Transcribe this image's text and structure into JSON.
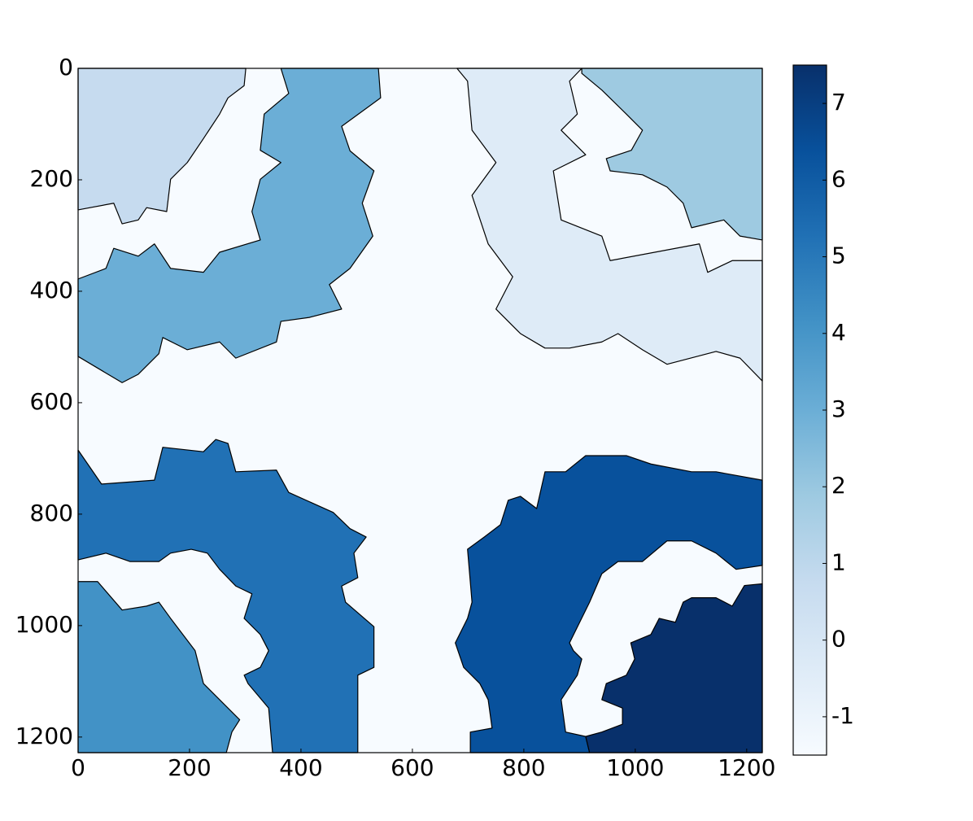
{
  "chart_data": {
    "type": "label_image",
    "xlim": [
      0,
      1228
    ],
    "ylim": [
      1228,
      0
    ],
    "xticks": [
      0,
      200,
      400,
      600,
      800,
      1000,
      1200
    ],
    "yticks": [
      0,
      200,
      400,
      600,
      800,
      1000,
      1200
    ],
    "regions": [
      {
        "value": -1,
        "color": "#f7fbff",
        "outline": [
          [
            0,
            0
          ],
          [
            1228,
            0
          ],
          [
            1228,
            1228
          ],
          [
            0,
            1228
          ]
        ]
      },
      {
        "value": 0,
        "color": "#deebf7",
        "outline": [
          [
            680,
            0
          ],
          [
            904,
            0
          ],
          [
            882,
            23
          ],
          [
            896,
            82
          ],
          [
            867,
            111
          ],
          [
            911,
            155
          ],
          [
            853,
            184
          ],
          [
            867,
            272
          ],
          [
            940,
            301
          ],
          [
            955,
            345
          ],
          [
            1115,
            315
          ],
          [
            1130,
            366
          ],
          [
            1174,
            345
          ],
          [
            1228,
            345
          ],
          [
            1228,
            561
          ],
          [
            1188,
            520
          ],
          [
            1145,
            508
          ],
          [
            1057,
            531
          ],
          [
            1013,
            505
          ],
          [
            969,
            476
          ],
          [
            940,
            491
          ],
          [
            882,
            502
          ],
          [
            838,
            502
          ],
          [
            794,
            476
          ],
          [
            750,
            432
          ],
          [
            780,
            374
          ],
          [
            736,
            315
          ],
          [
            707,
            228
          ],
          [
            750,
            169
          ],
          [
            707,
            111
          ],
          [
            699,
            23
          ]
        ]
      },
      {
        "value": 1,
        "color": "#c6dbef",
        "outline": [
          [
            0,
            0
          ],
          [
            301,
            0
          ],
          [
            298,
            31
          ],
          [
            269,
            53
          ],
          [
            254,
            82
          ],
          [
            225,
            126
          ],
          [
            196,
            169
          ],
          [
            166,
            199
          ],
          [
            159,
            257
          ],
          [
            123,
            250
          ],
          [
            108,
            272
          ],
          [
            79,
            279
          ],
          [
            64,
            242
          ],
          [
            0,
            254
          ]
        ]
      },
      {
        "value": 2,
        "color": "#9ecae1",
        "outline": [
          [
            904,
            0
          ],
          [
            1228,
            0
          ],
          [
            1228,
            308
          ],
          [
            1188,
            301
          ],
          [
            1159,
            272
          ],
          [
            1101,
            286
          ],
          [
            1086,
            242
          ],
          [
            1057,
            213
          ],
          [
            1013,
            191
          ],
          [
            955,
            184
          ],
          [
            948,
            162
          ],
          [
            993,
            147
          ],
          [
            1013,
            111
          ],
          [
            984,
            82
          ],
          [
            940,
            39
          ],
          [
            904,
            9
          ]
        ]
      },
      {
        "value": 3,
        "color": "#6baed6",
        "outline": [
          [
            364,
            0
          ],
          [
            539,
            0
          ],
          [
            543,
            53
          ],
          [
            473,
            104
          ],
          [
            488,
            148
          ],
          [
            531,
            184
          ],
          [
            510,
            242
          ],
          [
            529,
            301
          ],
          [
            488,
            359
          ],
          [
            451,
            388
          ],
          [
            473,
            432
          ],
          [
            415,
            447
          ],
          [
            364,
            454
          ],
          [
            356,
            491
          ],
          [
            283,
            520
          ],
          [
            254,
            491
          ],
          [
            196,
            505
          ],
          [
            152,
            483
          ],
          [
            145,
            512
          ],
          [
            108,
            549
          ],
          [
            79,
            564
          ],
          [
            42,
            542
          ],
          [
            0,
            517
          ],
          [
            0,
            378
          ],
          [
            50,
            359
          ],
          [
            64,
            323
          ],
          [
            108,
            337
          ],
          [
            137,
            315
          ],
          [
            166,
            359
          ],
          [
            225,
            366
          ],
          [
            254,
            330
          ],
          [
            327,
            308
          ],
          [
            312,
            257
          ],
          [
            327,
            199
          ],
          [
            364,
            169
          ],
          [
            327,
            147
          ],
          [
            334,
            82
          ],
          [
            378,
            45
          ]
        ]
      },
      {
        "value": 5,
        "color": "#2171b5",
        "outline": [
          [
            0,
            685
          ],
          [
            42,
            746
          ],
          [
            137,
            739
          ],
          [
            152,
            680
          ],
          [
            225,
            688
          ],
          [
            247,
            666
          ],
          [
            269,
            673
          ],
          [
            283,
            724
          ],
          [
            356,
            721
          ],
          [
            378,
            761
          ],
          [
            458,
            797
          ],
          [
            488,
            826
          ],
          [
            517,
            841
          ],
          [
            495,
            870
          ],
          [
            502,
            914
          ],
          [
            473,
            929
          ],
          [
            480,
            958
          ],
          [
            531,
            1002
          ],
          [
            531,
            1075
          ],
          [
            502,
            1089
          ],
          [
            502,
            1228
          ],
          [
            349,
            1228
          ],
          [
            342,
            1148
          ],
          [
            305,
            1104
          ],
          [
            298,
            1089
          ],
          [
            327,
            1075
          ],
          [
            342,
            1045
          ],
          [
            327,
            1016
          ],
          [
            298,
            987
          ],
          [
            312,
            943
          ],
          [
            283,
            929
          ],
          [
            254,
            899
          ],
          [
            232,
            870
          ],
          [
            203,
            863
          ],
          [
            166,
            870
          ],
          [
            145,
            885
          ],
          [
            93,
            885
          ],
          [
            50,
            870
          ],
          [
            0,
            882
          ]
        ]
      },
      {
        "value": 4,
        "color": "#4292c6",
        "outline": [
          [
            0,
            921
          ],
          [
            35,
            921
          ],
          [
            79,
            972
          ],
          [
            123,
            965
          ],
          [
            145,
            958
          ],
          [
            166,
            987
          ],
          [
            210,
            1045
          ],
          [
            225,
            1104
          ],
          [
            254,
            1133
          ],
          [
            290,
            1169
          ],
          [
            276,
            1191
          ],
          [
            266,
            1228
          ],
          [
            0,
            1228
          ]
        ]
      },
      {
        "value": 6,
        "color": "#08519c",
        "outline": [
          [
            704,
            1228
          ],
          [
            704,
            1191
          ],
          [
            743,
            1184
          ],
          [
            736,
            1133
          ],
          [
            721,
            1104
          ],
          [
            692,
            1075
          ],
          [
            677,
            1031
          ],
          [
            699,
            987
          ],
          [
            707,
            958
          ],
          [
            699,
            863
          ],
          [
            729,
            841
          ],
          [
            758,
            819
          ],
          [
            772,
            775
          ],
          [
            794,
            768
          ],
          [
            823,
            790
          ],
          [
            838,
            724
          ],
          [
            875,
            724
          ],
          [
            911,
            695
          ],
          [
            984,
            695
          ],
          [
            1028,
            710
          ],
          [
            1101,
            724
          ],
          [
            1145,
            724
          ],
          [
            1228,
            739
          ],
          [
            1228,
            892
          ],
          [
            1181,
            899
          ],
          [
            1145,
            870
          ],
          [
            1101,
            848
          ],
          [
            1057,
            848
          ],
          [
            1013,
            885
          ],
          [
            969,
            885
          ],
          [
            940,
            907
          ],
          [
            918,
            958
          ],
          [
            882,
            1031
          ],
          [
            889,
            1045
          ],
          [
            904,
            1060
          ],
          [
            896,
            1089
          ],
          [
            867,
            1133
          ],
          [
            875,
            1191
          ],
          [
            911,
            1199
          ],
          [
            918,
            1228
          ]
        ]
      },
      {
        "value": 7,
        "color": "#08306b",
        "outline": [
          [
            918,
            1228
          ],
          [
            911,
            1199
          ],
          [
            940,
            1191
          ],
          [
            977,
            1177
          ],
          [
            977,
            1148
          ],
          [
            940,
            1133
          ],
          [
            948,
            1104
          ],
          [
            984,
            1089
          ],
          [
            999,
            1060
          ],
          [
            992,
            1031
          ],
          [
            1028,
            1016
          ],
          [
            1043,
            987
          ],
          [
            1072,
            994
          ],
          [
            1086,
            958
          ],
          [
            1101,
            950
          ],
          [
            1145,
            950
          ],
          [
            1174,
            965
          ],
          [
            1196,
            928
          ],
          [
            1228,
            925
          ],
          [
            1228,
            1228
          ]
        ]
      }
    ],
    "colorbar": {
      "clim": [
        -1.5,
        7.5
      ],
      "ticks": [
        -1,
        0,
        1,
        2,
        3,
        4,
        5,
        6,
        7
      ],
      "colormap": [
        "#f7fbff",
        "#deebf7",
        "#c6dbef",
        "#9ecae1",
        "#6baed6",
        "#4292c6",
        "#2171b5",
        "#08519c",
        "#08306b"
      ]
    }
  }
}
